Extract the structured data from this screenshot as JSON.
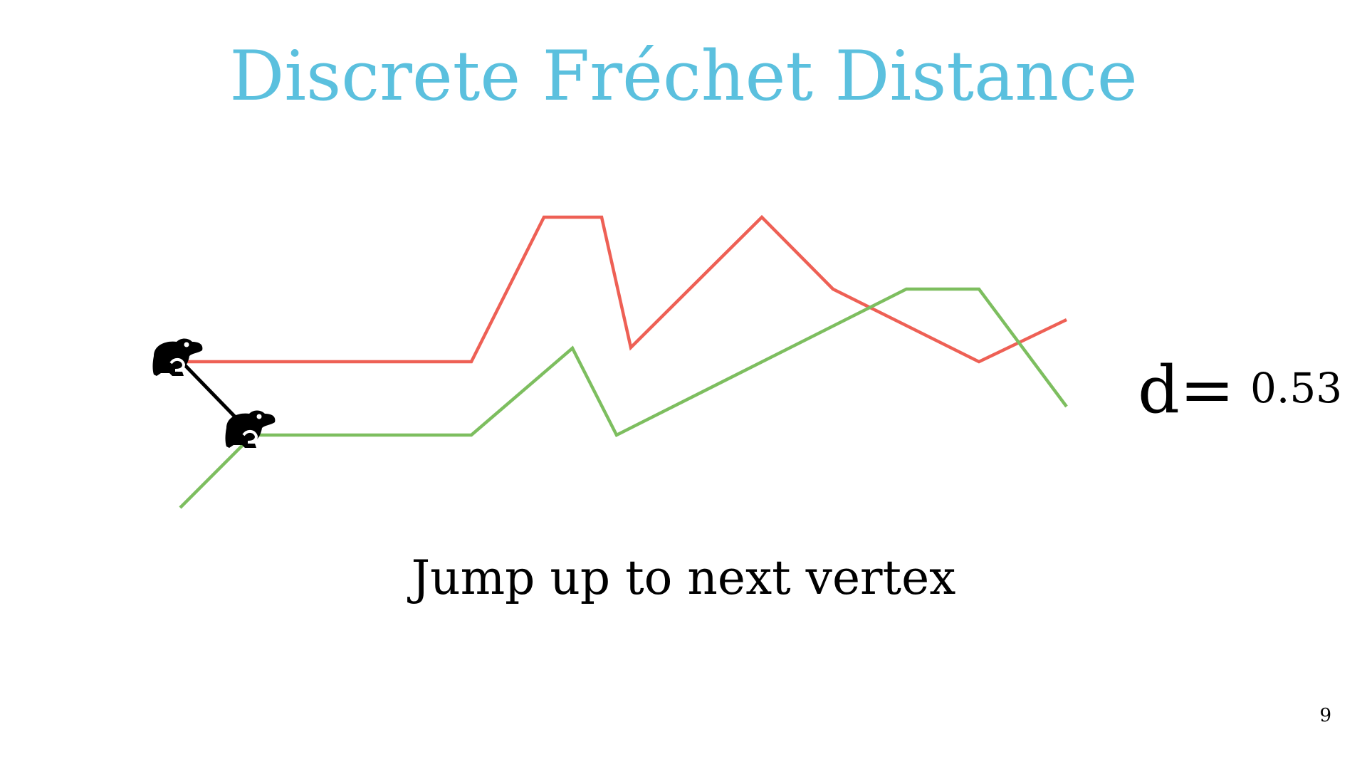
{
  "slide": {
    "title": "Discrete Fréchet Distance",
    "caption": "Jump up to next vertex",
    "distance_label": "d=",
    "distance_value": "0.53",
    "page_number": "9"
  },
  "colors": {
    "title": "#5bc0de",
    "red_curve": "#ee6055",
    "green_curve": "#7dbe5f",
    "leash": "#000000",
    "frog": "#000000"
  },
  "icons": {
    "frog_1": "frog-icon",
    "frog_2": "frog-icon"
  }
}
